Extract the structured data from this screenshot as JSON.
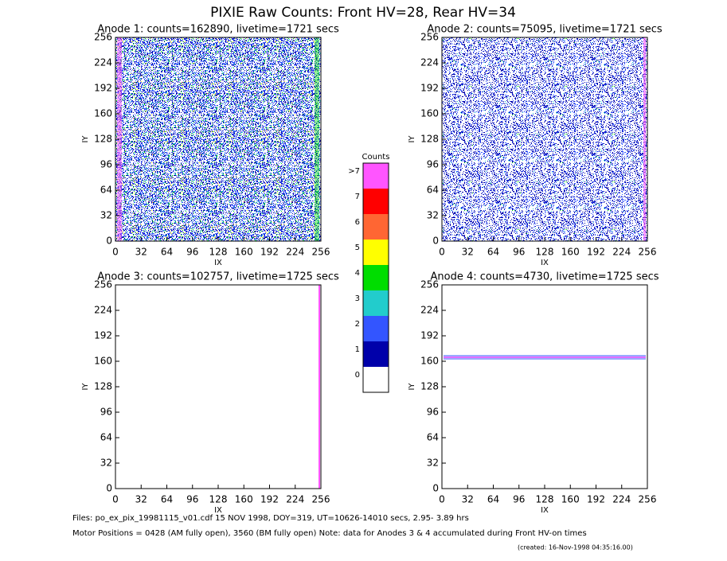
{
  "chart_data": {
    "type": "heatmap",
    "title": "PIXIE Raw Counts:  Front HV=28, Rear HV=34",
    "panels": [
      {
        "title": "Anode 1: counts=162890, livetime=1721 secs",
        "xlabel": "IX",
        "ylabel": "IY",
        "xlim": [
          0,
          256
        ],
        "ylim": [
          0,
          256
        ],
        "xticks": [
          0,
          32,
          64,
          96,
          128,
          160,
          192,
          224,
          256
        ],
        "yticks": [
          0,
          32,
          64,
          96,
          128,
          160,
          192,
          224,
          256
        ]
      },
      {
        "title": "Anode 2: counts=75095, livetime=1721 secs",
        "xlabel": "IX",
        "ylabel": "IY",
        "xlim": [
          0,
          256
        ],
        "ylim": [
          0,
          256
        ],
        "xticks": [
          0,
          32,
          64,
          96,
          128,
          160,
          192,
          224,
          256
        ],
        "yticks": [
          0,
          32,
          64,
          96,
          128,
          160,
          192,
          224,
          256
        ]
      },
      {
        "title": "Anode 3: counts=102757, livetime=1725 secs",
        "xlabel": "IX",
        "ylabel": "IY",
        "xlim": [
          0,
          256
        ],
        "ylim": [
          0,
          256
        ],
        "xticks": [
          0,
          32,
          64,
          96,
          128,
          160,
          192,
          224,
          256
        ],
        "yticks": [
          0,
          32,
          64,
          96,
          128,
          160,
          192,
          224,
          256
        ]
      },
      {
        "title": "Anode 4: counts=4730, livetime=1725 secs",
        "xlabel": "IX",
        "ylabel": "IY",
        "xlim": [
          0,
          256
        ],
        "ylim": [
          0,
          256
        ],
        "xticks": [
          0,
          32,
          64,
          96,
          128,
          160,
          192,
          224,
          256
        ],
        "yticks": [
          0,
          32,
          64,
          96,
          128,
          160,
          192,
          224,
          256
        ]
      }
    ],
    "colorbar": {
      "title": "Counts",
      "ticks": [
        0,
        1,
        2,
        3,
        4,
        5,
        6,
        7,
        {
          "value": 8,
          "label": ">7"
        }
      ],
      "colors": [
        "#ffffff",
        "#0000aa",
        "#3355ff",
        "#22cccc",
        "#00dd00",
        "#ffff00",
        "#ff6633",
        "#ff0000",
        "#ff55ff"
      ]
    },
    "footer": [
      "Files: po_ex_pix_19981115_v01.cdf    15 NOV 1998, DOY=319, UT=10626-14010 secs,  2.95- 3.89 hrs",
      "Motor Positions = 0428 (AM fully open), 3560 (BM fully open)    Note: data for Anodes 3 & 4 accumulated during Front HV-on times"
    ],
    "created": "(created: 16-Nov-1998 04:35:16.00)"
  }
}
